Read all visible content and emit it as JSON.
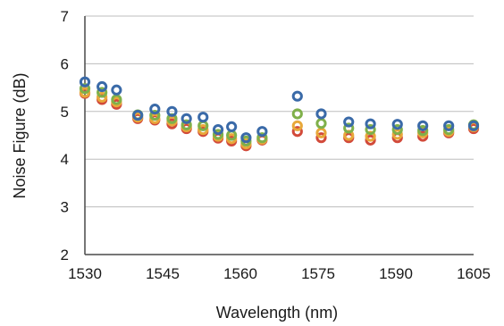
{
  "chart_data": {
    "type": "scatter",
    "xlabel": "Wavelength (nm)",
    "ylabel": "Noise Figure (dB)",
    "xlim": [
      1530,
      1605
    ],
    "ylim": [
      2,
      7
    ],
    "xticks": [
      1530,
      1545,
      1560,
      1575,
      1590,
      1605
    ],
    "yticks": [
      2,
      3,
      4,
      5,
      6,
      7
    ],
    "grid": true,
    "x": [
      1530,
      1533.3,
      1536.1,
      1540.2,
      1543.5,
      1546.8,
      1549.6,
      1552.8,
      1555.7,
      1558.3,
      1561.1,
      1564.2,
      1571.0,
      1575.6,
      1580.9,
      1585.1,
      1590.3,
      1595.2,
      1600.2,
      1605.0
    ],
    "series": [
      {
        "color": "#3a6aa8",
        "values": [
          5.62,
          5.52,
          5.45,
          4.92,
          5.05,
          5.0,
          4.85,
          4.88,
          4.62,
          4.68,
          4.45,
          4.58,
          5.32,
          4.95,
          4.78,
          4.74,
          4.73,
          4.7,
          4.7,
          4.7
        ]
      },
      {
        "color": "#7fb04a",
        "values": [
          5.48,
          5.4,
          5.25,
          4.93,
          4.92,
          4.85,
          4.72,
          4.7,
          4.52,
          4.5,
          4.38,
          4.45,
          4.95,
          4.75,
          4.65,
          4.62,
          4.62,
          4.6,
          4.62,
          4.72
        ]
      },
      {
        "color": "#e8a83a",
        "values": [
          5.4,
          5.3,
          5.2,
          4.88,
          4.85,
          4.8,
          4.68,
          4.62,
          4.48,
          4.43,
          4.32,
          4.42,
          4.7,
          4.55,
          4.5,
          4.48,
          4.52,
          4.55,
          4.58,
          4.68
        ]
      },
      {
        "color": "#d24a3a",
        "values": [
          5.38,
          5.25,
          5.15,
          4.85,
          4.82,
          4.74,
          4.64,
          4.58,
          4.44,
          4.38,
          4.28,
          4.4,
          4.58,
          4.45,
          4.45,
          4.4,
          4.45,
          4.48,
          4.55,
          4.64
        ]
      }
    ]
  }
}
